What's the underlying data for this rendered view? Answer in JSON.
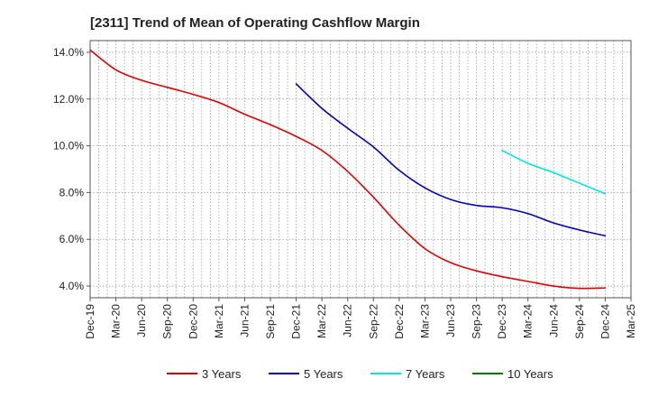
{
  "chart_data": {
    "type": "line",
    "title": "[2311]  Trend of Mean of Operating Cashflow Margin",
    "xlabel": "",
    "ylabel": "",
    "ylim": [
      3.5,
      14.5
    ],
    "yticks": [
      4.0,
      6.0,
      8.0,
      10.0,
      12.0,
      14.0
    ],
    "ytick_labels": [
      "4.0%",
      "6.0%",
      "8.0%",
      "10.0%",
      "12.0%",
      "14.0%"
    ],
    "categories": [
      "Dec-19",
      "Mar-20",
      "Jun-20",
      "Sep-20",
      "Dec-20",
      "Mar-21",
      "Jun-21",
      "Sep-21",
      "Dec-21",
      "Mar-22",
      "Jun-22",
      "Sep-22",
      "Dec-22",
      "Mar-23",
      "Jun-23",
      "Sep-23",
      "Dec-23",
      "Mar-24",
      "Jun-24",
      "Sep-24",
      "Dec-24",
      "Mar-25"
    ],
    "grid": true,
    "legend_position": "bottom",
    "series": [
      {
        "name": "3 Years",
        "color": "#e00000",
        "values": [
          14.1,
          13.25,
          12.8,
          12.5,
          12.2,
          11.85,
          11.35,
          10.9,
          10.4,
          9.8,
          8.9,
          7.8,
          6.6,
          5.6,
          5.0,
          4.65,
          4.4,
          4.2,
          4.0,
          3.9,
          3.92,
          null
        ]
      },
      {
        "name": "5 Years",
        "color": "#0000c0",
        "values": [
          null,
          null,
          null,
          null,
          null,
          null,
          null,
          null,
          12.65,
          11.6,
          10.75,
          9.95,
          8.95,
          8.2,
          7.7,
          7.45,
          7.35,
          7.1,
          6.7,
          6.4,
          6.15,
          null
        ]
      },
      {
        "name": "7 Years",
        "color": "#00e5e5",
        "values": [
          null,
          null,
          null,
          null,
          null,
          null,
          null,
          null,
          null,
          null,
          null,
          null,
          null,
          null,
          null,
          null,
          9.8,
          9.25,
          8.85,
          8.4,
          7.95,
          null
        ]
      },
      {
        "name": "10 Years",
        "color": "#008000",
        "values": [
          null,
          null,
          null,
          null,
          null,
          null,
          null,
          null,
          null,
          null,
          null,
          null,
          null,
          null,
          null,
          null,
          null,
          null,
          null,
          null,
          null,
          null
        ]
      }
    ]
  }
}
